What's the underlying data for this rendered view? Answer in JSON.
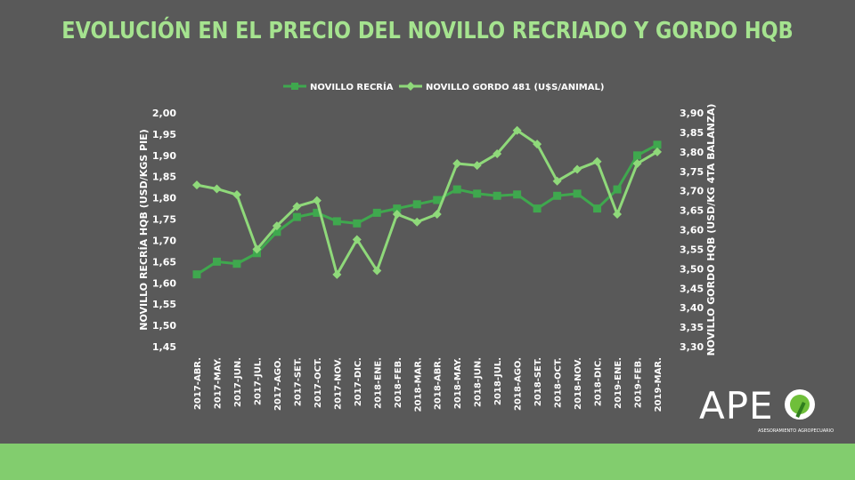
{
  "chart_data": {
    "type": "line",
    "title": "EVOLUCIÓN EN EL PRECIO DEL NOVILLO RECRIADO Y GORDO HQB",
    "categories": [
      "2017-ABR.",
      "2017-MAY.",
      "2017-JUN.",
      "2017-JUL.",
      "2017-AGO.",
      "2017-SET.",
      "2017-OCT.",
      "2017-NOV.",
      "2017-DIC.",
      "2018-ENE.",
      "2018-FEB.",
      "2018-MAR.",
      "2018-ABR.",
      "2018-MAY.",
      "2018-JUN.",
      "2018-JUL.",
      "2018-AGO.",
      "2018-SET.",
      "2018-OCT.",
      "2018-NOV.",
      "2018-DIC.",
      "2019-ENE.",
      "2019-FEB.",
      "2019-MAR."
    ],
    "series": [
      {
        "name": "NOVILLO RECRÍA",
        "axis": "left",
        "marker": "square",
        "color": "#3fa84e",
        "values": [
          1.62,
          1.65,
          1.645,
          1.67,
          1.72,
          1.755,
          1.765,
          1.745,
          1.74,
          1.765,
          1.775,
          1.785,
          1.795,
          1.82,
          1.81,
          1.805,
          1.808,
          1.775,
          1.805,
          1.81,
          1.775,
          1.82,
          1.9,
          1.925
        ]
      },
      {
        "name": "NOVILLO GORDO 481 (U$S/ANIMAL)",
        "axis": "right",
        "marker": "diamond",
        "color": "#8fd97a",
        "values": [
          3.715,
          3.705,
          3.69,
          3.55,
          3.61,
          3.66,
          3.675,
          3.485,
          3.575,
          3.495,
          3.64,
          3.62,
          3.64,
          3.77,
          3.765,
          3.795,
          3.855,
          3.82,
          3.725,
          3.755,
          3.775,
          3.64,
          3.77,
          3.8
        ]
      }
    ],
    "ylabel": "NOVILLO RECRÍA HQB (USD/KGS PIE)",
    "y2label": "NOVILLO GORDO HQB (USD/KG 4TA BALANZA)",
    "ylim": [
      1.45,
      2.0
    ],
    "y2lim": [
      3.3,
      3.9
    ],
    "yticks": [
      "1,45",
      "1,50",
      "1,55",
      "1,60",
      "1,65",
      "1,70",
      "1,75",
      "1,80",
      "1,85",
      "1,90",
      "1,95",
      "2,00"
    ],
    "y2ticks": [
      "3,30",
      "3,35",
      "3,40",
      "3,45",
      "3,50",
      "3,55",
      "3,60",
      "3,65",
      "3,70",
      "3,75",
      "3,80",
      "3,85",
      "3,90"
    ],
    "grid": false,
    "legend": "top-center"
  },
  "logo": {
    "name": "APE",
    "subtitle": "ASESORAMIENTO AGROPECUARIO"
  },
  "colors": {
    "background": "#595959",
    "title": "#a5e38f",
    "footer": "#82cd6e"
  }
}
